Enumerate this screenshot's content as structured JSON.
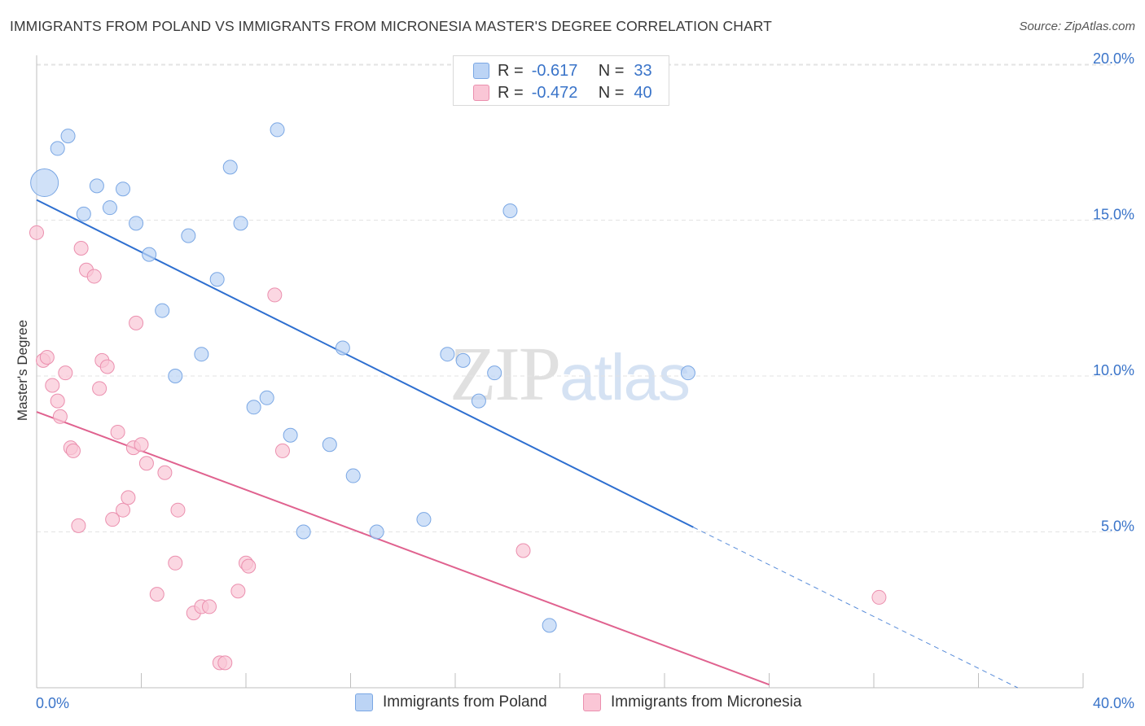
{
  "header": {
    "title": "IMMIGRANTS FROM POLAND VS IMMIGRANTS FROM MICRONESIA MASTER'S DEGREE CORRELATION CHART",
    "source": "Source: ZipAtlas.com"
  },
  "watermark": {
    "zip": "ZIP",
    "atlas": "atlas"
  },
  "stats": {
    "poland": {
      "r_label": "R =",
      "r_value": "-0.617",
      "n_label": "N =",
      "n_value": "33"
    },
    "micronesia": {
      "r_label": "R =",
      "r_value": "-0.472",
      "n_label": "N =",
      "n_value": "40"
    }
  },
  "legend": {
    "poland": "Immigrants from Poland",
    "micronesia": "Immigrants from Micronesia"
  },
  "colors": {
    "poland_fill": "#bcd4f5",
    "poland_stroke": "#7aa7e4",
    "poland_line": "#2e6fd0",
    "micronesia_fill": "#fac6d6",
    "micronesia_stroke": "#eb8fae",
    "micronesia_line": "#e0628f",
    "tick_label": "#3a74c9"
  },
  "chart_data": {
    "type": "scatter",
    "title": "IMMIGRANTS FROM POLAND VS IMMIGRANTS FROM MICRONESIA MASTER'S DEGREE CORRELATION CHART",
    "xlabel": "",
    "ylabel": "Master's Degree",
    "xlim": [
      0,
      40
    ],
    "ylim": [
      0,
      20.5
    ],
    "x_tick_labels": [
      "0.0%",
      "40.0%"
    ],
    "y_ticks": [
      5,
      10,
      15,
      20
    ],
    "y_tick_labels": [
      "5.0%",
      "10.0%",
      "15.0%",
      "20.0%"
    ],
    "grid": true,
    "series": [
      {
        "name": "Immigrants from Poland",
        "points": [
          {
            "x": 0.3,
            "y": 16.2,
            "big": true
          },
          {
            "x": 0.8,
            "y": 17.3
          },
          {
            "x": 1.2,
            "y": 17.7
          },
          {
            "x": 1.8,
            "y": 15.2
          },
          {
            "x": 2.3,
            "y": 16.1
          },
          {
            "x": 2.8,
            "y": 15.4
          },
          {
            "x": 3.3,
            "y": 16.0
          },
          {
            "x": 3.8,
            "y": 14.9
          },
          {
            "x": 4.3,
            "y": 13.9
          },
          {
            "x": 4.8,
            "y": 12.1
          },
          {
            "x": 5.3,
            "y": 10.0
          },
          {
            "x": 5.8,
            "y": 14.5
          },
          {
            "x": 6.3,
            "y": 10.7
          },
          {
            "x": 6.9,
            "y": 13.1
          },
          {
            "x": 7.4,
            "y": 16.7
          },
          {
            "x": 7.8,
            "y": 14.9
          },
          {
            "x": 8.3,
            "y": 9.0
          },
          {
            "x": 8.8,
            "y": 9.3
          },
          {
            "x": 9.2,
            "y": 17.9
          },
          {
            "x": 9.7,
            "y": 8.1
          },
          {
            "x": 10.2,
            "y": 5.0
          },
          {
            "x": 11.2,
            "y": 7.8
          },
          {
            "x": 11.7,
            "y": 10.9
          },
          {
            "x": 12.1,
            "y": 6.8
          },
          {
            "x": 13.0,
            "y": 5.0
          },
          {
            "x": 14.8,
            "y": 5.4
          },
          {
            "x": 15.7,
            "y": 10.7
          },
          {
            "x": 16.3,
            "y": 10.5
          },
          {
            "x": 16.9,
            "y": 9.2
          },
          {
            "x": 17.5,
            "y": 10.1
          },
          {
            "x": 18.1,
            "y": 15.3
          },
          {
            "x": 19.6,
            "y": 2.0
          },
          {
            "x": 24.9,
            "y": 10.1
          }
        ],
        "trend": {
          "x0": 0,
          "y0": 15.65,
          "x1": 25.1,
          "y1": 5.15,
          "dash_to_x": 37.5,
          "dash_to_y": 0.0
        }
      },
      {
        "name": "Immigrants from Micronesia",
        "points": [
          {
            "x": 0.0,
            "y": 14.6
          },
          {
            "x": 0.25,
            "y": 10.5
          },
          {
            "x": 0.4,
            "y": 10.6
          },
          {
            "x": 0.6,
            "y": 9.7
          },
          {
            "x": 0.8,
            "y": 9.2
          },
          {
            "x": 0.9,
            "y": 8.7
          },
          {
            "x": 1.1,
            "y": 10.1
          },
          {
            "x": 1.3,
            "y": 7.7
          },
          {
            "x": 1.4,
            "y": 7.6
          },
          {
            "x": 1.6,
            "y": 5.2
          },
          {
            "x": 1.7,
            "y": 14.1
          },
          {
            "x": 1.9,
            "y": 13.4
          },
          {
            "x": 2.2,
            "y": 13.2
          },
          {
            "x": 2.4,
            "y": 9.6
          },
          {
            "x": 2.5,
            "y": 10.5
          },
          {
            "x": 2.7,
            "y": 10.3
          },
          {
            "x": 2.9,
            "y": 5.4
          },
          {
            "x": 3.1,
            "y": 8.2
          },
          {
            "x": 3.3,
            "y": 5.7
          },
          {
            "x": 3.5,
            "y": 6.1
          },
          {
            "x": 3.7,
            "y": 7.7
          },
          {
            "x": 3.8,
            "y": 11.7
          },
          {
            "x": 4.0,
            "y": 7.8
          },
          {
            "x": 4.2,
            "y": 7.2
          },
          {
            "x": 4.6,
            "y": 3.0
          },
          {
            "x": 4.9,
            "y": 6.9
          },
          {
            "x": 5.3,
            "y": 4.0
          },
          {
            "x": 5.4,
            "y": 5.7
          },
          {
            "x": 6.0,
            "y": 2.4
          },
          {
            "x": 6.3,
            "y": 2.6
          },
          {
            "x": 6.6,
            "y": 2.6
          },
          {
            "x": 7.0,
            "y": 0.8
          },
          {
            "x": 7.2,
            "y": 0.8
          },
          {
            "x": 7.7,
            "y": 3.1
          },
          {
            "x": 8.0,
            "y": 4.0
          },
          {
            "x": 8.1,
            "y": 3.9
          },
          {
            "x": 9.4,
            "y": 7.6
          },
          {
            "x": 9.1,
            "y": 12.6
          },
          {
            "x": 18.6,
            "y": 4.4
          },
          {
            "x": 32.2,
            "y": 2.9
          }
        ],
        "trend": {
          "x0": 0,
          "y0": 8.85,
          "x1": 28.0,
          "y1": 0.1
        }
      }
    ]
  }
}
